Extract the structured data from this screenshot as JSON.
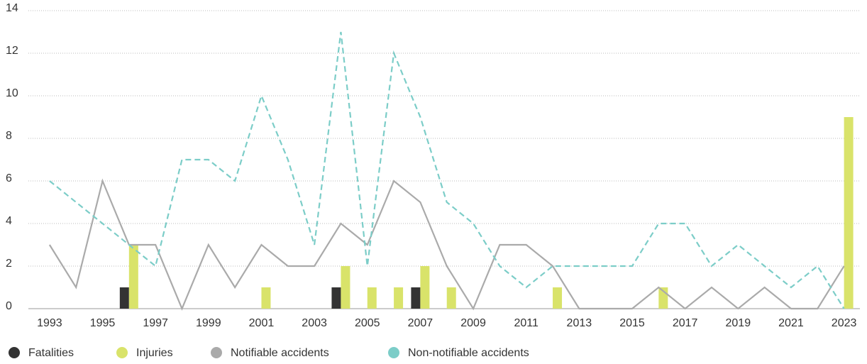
{
  "chart_data": {
    "type": "combo",
    "x": [
      1993,
      1994,
      1995,
      1996,
      1997,
      1998,
      1999,
      2000,
      2001,
      2002,
      2003,
      2004,
      2005,
      2006,
      2007,
      2008,
      2009,
      2010,
      2011,
      2012,
      2013,
      2014,
      2015,
      2016,
      2017,
      2018,
      2019,
      2020,
      2021,
      2022,
      2023
    ],
    "xlim": [
      1992.2,
      2023.6
    ],
    "xticks": [
      1993,
      1995,
      1997,
      1999,
      2001,
      2003,
      2005,
      2007,
      2009,
      2011,
      2013,
      2015,
      2017,
      2019,
      2021,
      2023
    ],
    "ylim": [
      0,
      14
    ],
    "yticks": [
      0,
      2,
      4,
      6,
      8,
      10,
      12,
      14
    ],
    "grid": true,
    "legend": "bottom",
    "series": [
      {
        "name": "Fatalities",
        "type": "bar",
        "color": "#333333",
        "values": [
          0,
          0,
          0,
          1,
          0,
          0,
          0,
          0,
          0,
          0,
          0,
          1,
          0,
          0,
          1,
          0,
          0,
          0,
          0,
          0,
          0,
          0,
          0,
          0,
          0,
          0,
          0,
          0,
          0,
          0,
          0
        ]
      },
      {
        "name": "Injuries",
        "type": "bar",
        "color": "#d9e36a",
        "values": [
          0,
          0,
          0,
          3,
          0,
          0,
          0,
          0,
          1,
          0,
          0,
          2,
          1,
          1,
          2,
          1,
          0,
          0,
          0,
          1,
          0,
          0,
          0,
          1,
          0,
          0,
          0,
          0,
          0,
          0,
          9
        ]
      },
      {
        "name": "Notifiable accidents",
        "type": "line",
        "color": "#aaaaaa",
        "style": "solid",
        "values": [
          3,
          1,
          6,
          3,
          3,
          0,
          3,
          1,
          3,
          2,
          2,
          4,
          3,
          6,
          5,
          2,
          0,
          3,
          3,
          2,
          0,
          0,
          0,
          1,
          0,
          1,
          0,
          1,
          0,
          0,
          2
        ]
      },
      {
        "name": "Non-notifiable accidents",
        "type": "line",
        "color": "#7ccdc8",
        "style": "dashed",
        "values": [
          6,
          5,
          4,
          3,
          2,
          7,
          7,
          6,
          10,
          7,
          3,
          13,
          2,
          12,
          9,
          5,
          4,
          2,
          1,
          2,
          2,
          2,
          2,
          4,
          4,
          2,
          3,
          2,
          1,
          2,
          0
        ]
      }
    ]
  }
}
